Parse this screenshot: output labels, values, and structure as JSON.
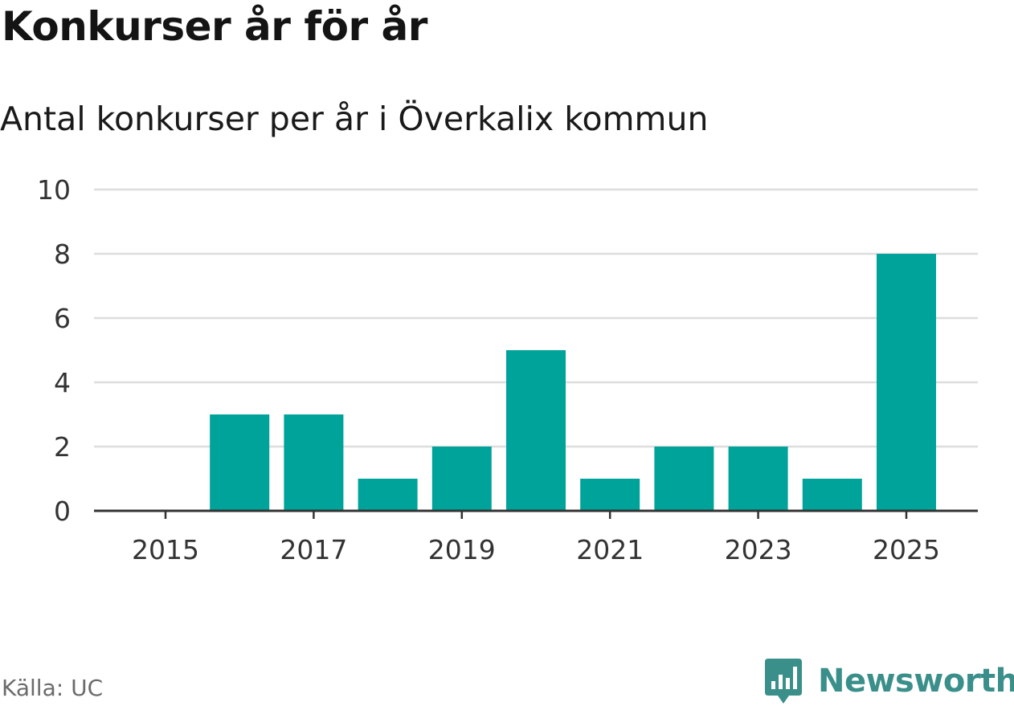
{
  "title": "Konkurser år för år",
  "subtitle": "Antal konkurser per år i Överkalix kommun",
  "source": "Källa: UC",
  "brand": "Newsworthy",
  "colors": {
    "bar": "#00a39a",
    "grid": "#dddddd",
    "axis": "#333333",
    "brand": "#3a8f8a"
  },
  "icons": {
    "brand_logo": "newsworthy-logo-icon"
  },
  "chart_data": {
    "type": "bar",
    "categories": [
      "2015",
      "2016",
      "2017",
      "2018",
      "2019",
      "2020",
      "2021",
      "2022",
      "2023",
      "2024",
      "2025"
    ],
    "values": [
      0,
      3,
      3,
      1,
      2,
      5,
      1,
      2,
      2,
      1,
      8
    ],
    "x_tick_labels": [
      "2015",
      "2017",
      "2019",
      "2021",
      "2023",
      "2025"
    ],
    "y_ticks": [
      0,
      2,
      4,
      6,
      8,
      10
    ],
    "ylim": [
      0,
      10
    ],
    "xlabel": "",
    "ylabel": "",
    "grid": true
  }
}
